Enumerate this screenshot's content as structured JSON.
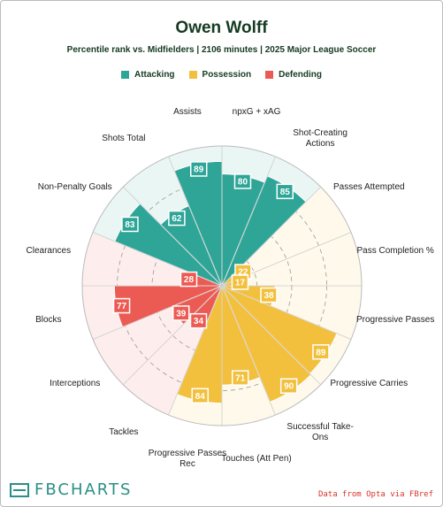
{
  "chart_data": {
    "type": "pizza",
    "title": "Owen Wolff",
    "subtitle": "Percentile rank vs. Midfielders | 2106 minutes | 2025 Major League Soccer",
    "categories": [
      "npxG + xAG",
      "Shot-Creating Actions",
      "Passes Attempted",
      "Pass Completion %",
      "Progressive Passes",
      "Progressive Carries",
      "Successful Take-Ons",
      "Touches (Att Pen)",
      "Progressive Passes Rec",
      "Tackles",
      "Interceptions",
      "Blocks",
      "Clearances",
      "Non-Penalty Goals",
      "Shots Total",
      "Assists"
    ],
    "series": [
      {
        "name": "Attacking",
        "color": "#2ea597",
        "values": [
          80,
          85,
          null,
          null,
          null,
          null,
          null,
          null,
          null,
          null,
          null,
          null,
          null,
          83,
          62,
          89
        ]
      },
      {
        "name": "Possession",
        "color": "#f2c03d",
        "values": [
          null,
          null,
          22,
          17,
          38,
          89,
          90,
          71,
          84,
          null,
          null,
          null,
          null,
          null,
          null,
          null
        ]
      },
      {
        "name": "Defending",
        "color": "#ec5b53",
        "values": [
          null,
          null,
          null,
          null,
          null,
          null,
          null,
          null,
          null,
          34,
          39,
          77,
          28,
          null,
          null,
          null
        ]
      }
    ],
    "rlim": [
      0,
      100
    ],
    "rticks": [
      25,
      50,
      75
    ],
    "logo_text": "FBCHARTS",
    "source": "Data from Opta via FBref"
  }
}
